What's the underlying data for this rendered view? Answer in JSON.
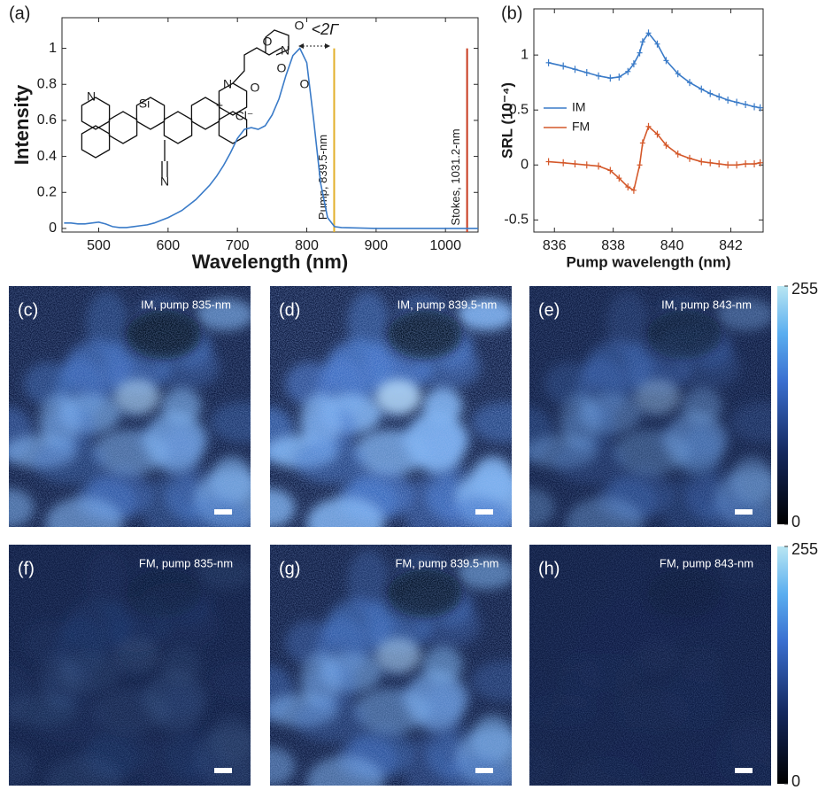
{
  "chart_data": [
    {
      "type": "line",
      "panel_label": "(a)",
      "xlabel": "Wavelength (nm)",
      "ylabel": "Intensity",
      "color": "#3a7bc8",
      "x": [
        450,
        460,
        470,
        480,
        490,
        500,
        510,
        520,
        530,
        540,
        550,
        560,
        570,
        580,
        590,
        600,
        610,
        620,
        630,
        640,
        650,
        660,
        670,
        680,
        690,
        700,
        710,
        720,
        730,
        740,
        750,
        760,
        770,
        780,
        790,
        800,
        810,
        820,
        830,
        840,
        850,
        900,
        1000,
        1047
      ],
      "values": [
        0.03,
        0.03,
        0.025,
        0.025,
        0.03,
        0.035,
        0.025,
        0.01,
        0.005,
        0.005,
        0.01,
        0.015,
        0.02,
        0.03,
        0.045,
        0.06,
        0.08,
        0.1,
        0.13,
        0.16,
        0.2,
        0.24,
        0.29,
        0.35,
        0.42,
        0.5,
        0.55,
        0.56,
        0.55,
        0.57,
        0.63,
        0.72,
        0.85,
        0.96,
        1.0,
        0.92,
        0.6,
        0.25,
        0.06,
        0.01,
        0.005,
        0,
        0,
        0
      ],
      "xlim": [
        447,
        1047
      ],
      "ylim": [
        -0.02,
        1.17
      ],
      "xticks": [
        500,
        600,
        700,
        800,
        900,
        1000
      ],
      "yticks": [
        0,
        0.2,
        0.4,
        0.6,
        0.8,
        1
      ],
      "vlines": [
        {
          "x": 839.5,
          "label": "Pump, 839.5-nm",
          "color": "#e2b02a"
        },
        {
          "x": 1031.2,
          "label": "Stokes, 1031.2-nm",
          "color": "#c83a1c"
        }
      ],
      "annotation": "<2Γ",
      "structure_atoms": [
        "N",
        "Si",
        "N",
        "+",
        "Cl⁻",
        "N",
        "O",
        "O",
        "O",
        "N",
        "O",
        "O"
      ]
    },
    {
      "type": "line",
      "panel_label": "(b)",
      "xlabel": "Pump wavelength (nm)",
      "ylabel": "SRL (10⁻⁴)",
      "markers": true,
      "x": [
        835.8,
        836.3,
        836.7,
        837.1,
        837.5,
        837.9,
        838.2,
        838.5,
        838.7,
        838.9,
        839.0,
        839.2,
        839.5,
        839.8,
        840.2,
        840.6,
        841.0,
        841.3,
        841.6,
        841.9,
        842.2,
        842.5,
        842.8,
        843.0
      ],
      "series": [
        {
          "name": "IM",
          "color": "#3a7bc8",
          "values": [
            0.93,
            0.9,
            0.87,
            0.84,
            0.81,
            0.79,
            0.8,
            0.85,
            0.92,
            1.02,
            1.12,
            1.2,
            1.1,
            0.95,
            0.83,
            0.75,
            0.69,
            0.65,
            0.62,
            0.59,
            0.57,
            0.55,
            0.53,
            0.52
          ]
        },
        {
          "name": "FM",
          "color": "#d4582a",
          "values": [
            0.03,
            0.02,
            0.01,
            0.0,
            -0.01,
            -0.05,
            -0.12,
            -0.2,
            -0.23,
            0.0,
            0.2,
            0.35,
            0.28,
            0.18,
            0.1,
            0.06,
            0.03,
            0.02,
            0.01,
            0.0,
            0.0,
            0.01,
            0.01,
            0.02
          ]
        }
      ],
      "xlim": [
        835.3,
        843.1
      ],
      "ylim": [
        -0.61,
        1.42
      ],
      "xticks": [
        836,
        838,
        840,
        842
      ],
      "yticks": [
        -0.5,
        0,
        0.5,
        1
      ]
    }
  ],
  "images": [
    {
      "label": "(c)",
      "caption": "IM, pump 835-nm"
    },
    {
      "label": "(d)",
      "caption": "IM, pump 839.5-nm"
    },
    {
      "label": "(e)",
      "caption": "IM, pump 843-nm"
    },
    {
      "label": "(f)",
      "caption": "FM, pump 835-nm"
    },
    {
      "label": "(g)",
      "caption": "FM, pump 839.5-nm"
    },
    {
      "label": "(h)",
      "caption": "FM, pump 843-nm"
    }
  ],
  "colorbars": [
    {
      "lim": [
        0,
        255
      ],
      "ticks": [
        0,
        255
      ]
    },
    {
      "lim": [
        0,
        255
      ],
      "ticks": [
        0,
        255
      ]
    }
  ]
}
